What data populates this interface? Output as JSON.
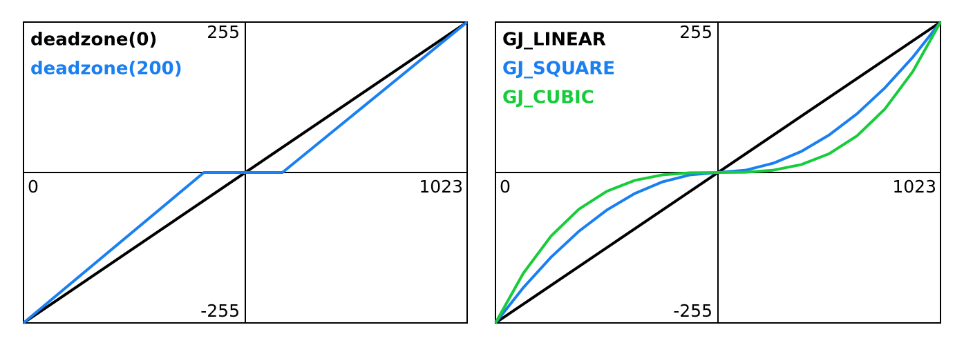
{
  "chart_data": [
    {
      "type": "line",
      "xlim": [
        0,
        1023
      ],
      "ylim": [
        -255,
        255
      ],
      "xticks": [
        0,
        1023
      ],
      "yticks": [
        -255,
        255
      ],
      "series": [
        {
          "name": "deadzone(0)",
          "color": "#000000",
          "x": [
            0,
            1023
          ],
          "values": [
            -255,
            255
          ]
        },
        {
          "name": "deadzone(200)",
          "color": "#1a7ff0",
          "x": [
            0,
            416,
            597,
            1023
          ],
          "values": [
            -255,
            0,
            0,
            255
          ]
        }
      ]
    },
    {
      "type": "line",
      "xlim": [
        0,
        1023
      ],
      "ylim": [
        -255,
        255
      ],
      "xticks": [
        0,
        1023
      ],
      "yticks": [
        -255,
        255
      ],
      "series": [
        {
          "name": "GJ_LINEAR",
          "color": "#000000",
          "x": [
            0,
            1023
          ],
          "values": [
            -255,
            255
          ]
        },
        {
          "name": "GJ_SQUARE",
          "color": "#1a7ff0",
          "x": [
            0,
            64,
            128,
            192,
            256,
            320,
            384,
            448,
            512,
            575,
            639,
            703,
            767,
            831,
            895,
            959,
            1023
          ],
          "values": [
            -255,
            -195.2,
            -143.4,
            -99.5,
            -63.6,
            -35.7,
            -15.8,
            -3.9,
            0,
            3.9,
            15.8,
            35.7,
            63.6,
            99.5,
            143.4,
            195.2,
            255
          ]
        },
        {
          "name": "GJ_CUBIC",
          "color": "#17cc3a",
          "x": [
            0,
            64,
            128,
            192,
            256,
            320,
            384,
            448,
            512,
            575,
            639,
            703,
            767,
            831,
            895,
            959,
            1023
          ],
          "values": [
            -255,
            -170.8,
            -107.5,
            -62.1,
            -31.8,
            -13.4,
            -4.0,
            -0.5,
            0,
            0.5,
            4.0,
            13.4,
            31.8,
            62.1,
            107.5,
            170.8,
            255
          ]
        }
      ]
    }
  ]
}
